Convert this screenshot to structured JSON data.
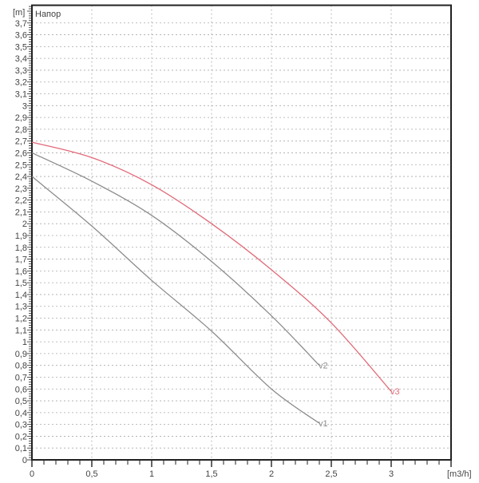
{
  "chart_data": {
    "type": "line",
    "title": "Напор",
    "xlabel": "[m3/h]",
    "ylabel": "[m]",
    "xlim": [
      0,
      3.5
    ],
    "ylim": [
      0,
      3.85
    ],
    "xticks": [
      0,
      0.5,
      1,
      1.5,
      2,
      2.5,
      3
    ],
    "xtick_labels": [
      "0",
      "0,5",
      "1",
      "1,5",
      "2",
      "2,5",
      "3"
    ],
    "yticks": [
      0,
      0.1,
      0.2,
      0.3,
      0.4,
      0.5,
      0.6,
      0.7,
      0.8,
      0.9,
      1,
      1.1,
      1.2,
      1.3,
      1.4,
      1.5,
      1.6,
      1.7,
      1.8,
      1.9,
      2,
      2.1,
      2.2,
      2.3,
      2.4,
      2.5,
      2.6,
      2.7,
      2.8,
      2.9,
      3,
      3.1,
      3.2,
      3.3,
      3.4,
      3.5,
      3.6,
      3.7
    ],
    "grid": true,
    "series": [
      {
        "name": "v1",
        "color": "#8c8c8c",
        "x": [
          0,
          0.5,
          1,
          1.5,
          2,
          2.4
        ],
        "y": [
          2.4,
          1.98,
          1.52,
          1.09,
          0.6,
          0.31
        ]
      },
      {
        "name": "v2",
        "color": "#8c8c8c",
        "x": [
          0,
          0.5,
          1,
          1.5,
          2,
          2.4
        ],
        "y": [
          2.6,
          2.36,
          2.07,
          1.68,
          1.22,
          0.8
        ]
      },
      {
        "name": "v3",
        "color": "#e06a78",
        "x": [
          0,
          0.5,
          1,
          1.5,
          2,
          2.5,
          3
        ],
        "y": [
          2.69,
          2.56,
          2.33,
          2.0,
          1.61,
          1.16,
          0.58
        ]
      }
    ]
  }
}
